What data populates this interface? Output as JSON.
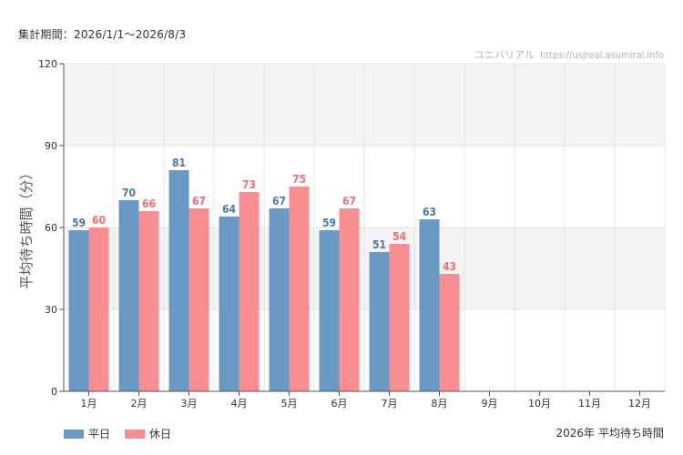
{
  "header": {
    "period_label": "集計期間：2026/1/1〜2026/8/3"
  },
  "watermark": {
    "site_name": "ユニバリアル",
    "url": "https://usjreal.asumirai.info"
  },
  "colors": {
    "weekday": "#6a9ac4",
    "holiday": "#f98e92",
    "weekday_label": "#4a78a8",
    "holiday_label": "#f06f75",
    "band": "#f4f4f4",
    "grid": "#e4e4e4",
    "axis": "#555555"
  },
  "chart_data": {
    "type": "bar",
    "title": "",
    "xlabel": "",
    "ylabel": "平均待ち時間（分）",
    "ylim": [
      0,
      120
    ],
    "yticks": [
      0,
      30,
      60,
      90,
      120
    ],
    "categories": [
      "1月",
      "2月",
      "3月",
      "4月",
      "5月",
      "6月",
      "7月",
      "8月",
      "9月",
      "10月",
      "11月",
      "12月"
    ],
    "series": [
      {
        "name": "平日",
        "values": [
          59,
          70,
          81,
          64,
          67,
          59,
          51,
          63,
          null,
          null,
          null,
          null
        ]
      },
      {
        "name": "休日",
        "values": [
          60,
          66,
          67,
          73,
          75,
          67,
          54,
          43,
          null,
          null,
          null,
          null
        ]
      }
    ],
    "grid": true,
    "legend": "bottom-left"
  },
  "footer": {
    "year": "2026年",
    "metric": "平均待ち時間"
  }
}
